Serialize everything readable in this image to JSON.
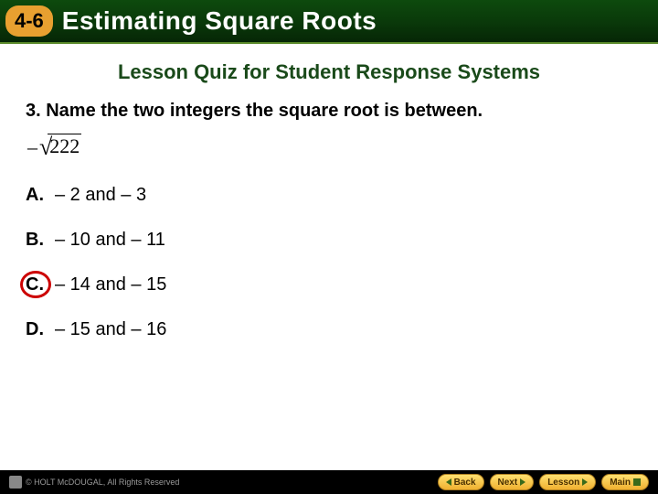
{
  "header": {
    "lesson_number": "4-6",
    "title": "Estimating Square Roots"
  },
  "quiz": {
    "heading": "Lesson Quiz for Student Response Systems",
    "question": "3. Name the two integers the square root is between.",
    "expression": {
      "sign": "–",
      "radicand": "222"
    },
    "options": [
      {
        "letter": "A.",
        "text": "– 2 and – 3",
        "correct": false
      },
      {
        "letter": "B.",
        "text": "– 10 and – 11",
        "correct": false
      },
      {
        "letter": "C.",
        "text": "– 14 and – 15",
        "correct": true
      },
      {
        "letter": "D.",
        "text": "– 15 and – 16",
        "correct": false
      }
    ]
  },
  "footer": {
    "copyright": "© HOLT McDOUGAL, All Rights Reserved",
    "nav": {
      "back": "Back",
      "next": "Next",
      "lesson": "Lesson",
      "main": "Main"
    }
  },
  "colors": {
    "header_bg": "#0a3a0a",
    "badge_bg": "#e8a030",
    "heading_color": "#1a4a1a",
    "circle_color": "#cc0000",
    "footer_bg": "#000000",
    "nav_btn_bg": "#f0b030"
  }
}
